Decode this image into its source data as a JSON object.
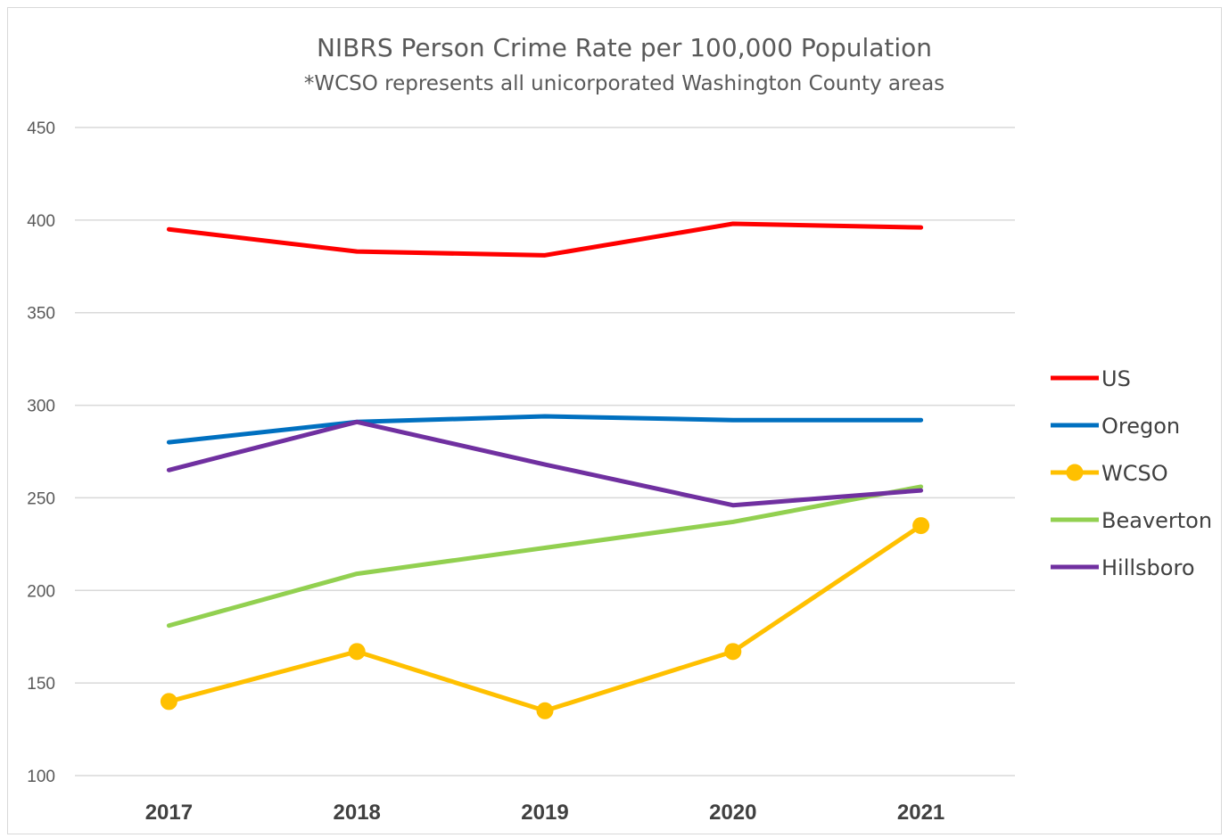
{
  "chart_data": {
    "type": "line",
    "title": "NIBRS Person Crime Rate per 100,000 Population",
    "subtitle": "*WCSO represents all unicorporated Washington County areas",
    "xlabel": "",
    "ylabel": "",
    "categories": [
      "2017",
      "2018",
      "2019",
      "2020",
      "2021"
    ],
    "ylim": [
      100,
      450
    ],
    "yticks": [
      100,
      150,
      200,
      250,
      300,
      350,
      400,
      450
    ],
    "grid": true,
    "legend_position": "right",
    "series": [
      {
        "name": "US",
        "color": "#ff0000",
        "markers": false,
        "values": [
          395,
          383,
          381,
          398,
          396
        ]
      },
      {
        "name": "Oregon",
        "color": "#0070c0",
        "markers": false,
        "values": [
          280,
          291,
          294,
          292,
          292
        ]
      },
      {
        "name": "WCSO",
        "color": "#ffc000",
        "markers": true,
        "values": [
          140,
          167,
          135,
          167,
          235
        ]
      },
      {
        "name": "Beaverton",
        "color": "#92d050",
        "markers": false,
        "values": [
          181,
          209,
          223,
          237,
          256
        ]
      },
      {
        "name": "Hillsboro",
        "color": "#7030a0",
        "markers": false,
        "values": [
          265,
          291,
          268,
          246,
          254
        ]
      }
    ]
  }
}
